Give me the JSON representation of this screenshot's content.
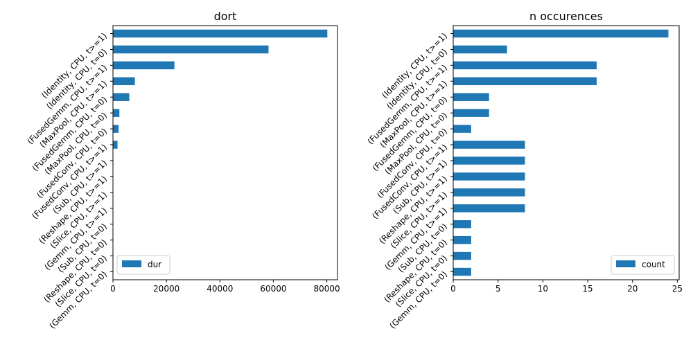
{
  "chart_data": [
    {
      "type": "bar",
      "orientation": "horizontal",
      "title": "dort",
      "categories": [
        "(Identity, CPU, t>=1)",
        "(Identity, CPU, t=0)",
        "(FusedGemm, CPU, t>=1)",
        "(MaxPool, CPU, t>=1)",
        "(FusedGemm, CPU, t=0)",
        "(MaxPool, CPU, t=0)",
        "(FusedConv, CPU, t=0)",
        "(FusedConv, CPU, t>=1)",
        "(Sub, CPU, t>=1)",
        "(Reshape, CPU, t>=1)",
        "(Slice, CPU, t>=1)",
        "(Gemm, CPU, t>=1)",
        "(Sub, CPU, t=0)",
        "(Reshape, CPU, t=0)",
        "(Slice, CPU, t=0)",
        "(Gemm, CPU, t=0)"
      ],
      "series": [
        {
          "name": "dur",
          "color": "#1f77b4",
          "values": [
            80200,
            58200,
            23000,
            8200,
            6100,
            2400,
            2100,
            1700,
            150,
            120,
            110,
            90,
            80,
            70,
            60,
            50
          ]
        }
      ],
      "xlim": [
        0,
        84000
      ],
      "xticks": [
        0,
        20000,
        40000,
        60000,
        80000
      ],
      "xtick_labels": [
        "0",
        "20000",
        "40000",
        "60000",
        "80000"
      ],
      "legend": "lower-left",
      "grid": false
    },
    {
      "type": "bar",
      "orientation": "horizontal",
      "title": "n occurences",
      "categories": [
        "(Identity, CPU, t>=1)",
        "(Identity, CPU, t=0)",
        "(FusedGemm, CPU, t>=1)",
        "(MaxPool, CPU, t>=1)",
        "(FusedGemm, CPU, t=0)",
        "(MaxPool, CPU, t=0)",
        "(FusedConv, CPU, t=0)",
        "(FusedConv, CPU, t>=1)",
        "(Sub, CPU, t>=1)",
        "(Reshape, CPU, t>=1)",
        "(Slice, CPU, t>=1)",
        "(Gemm, CPU, t>=1)",
        "(Sub, CPU, t=0)",
        "(Reshape, CPU, t=0)",
        "(Slice, CPU, t=0)",
        "(Gemm, CPU, t=0)"
      ],
      "series": [
        {
          "name": "count",
          "color": "#1f77b4",
          "values": [
            24,
            6,
            16,
            16,
            4,
            4,
            2,
            8,
            8,
            8,
            8,
            8,
            2,
            2,
            2,
            2
          ]
        }
      ],
      "xlim": [
        0,
        25.2
      ],
      "xticks": [
        0,
        5,
        10,
        15,
        20,
        25
      ],
      "xtick_labels": [
        "0",
        "5",
        "10",
        "15",
        "20",
        "25"
      ],
      "legend": "lower-right",
      "grid": false
    }
  ]
}
